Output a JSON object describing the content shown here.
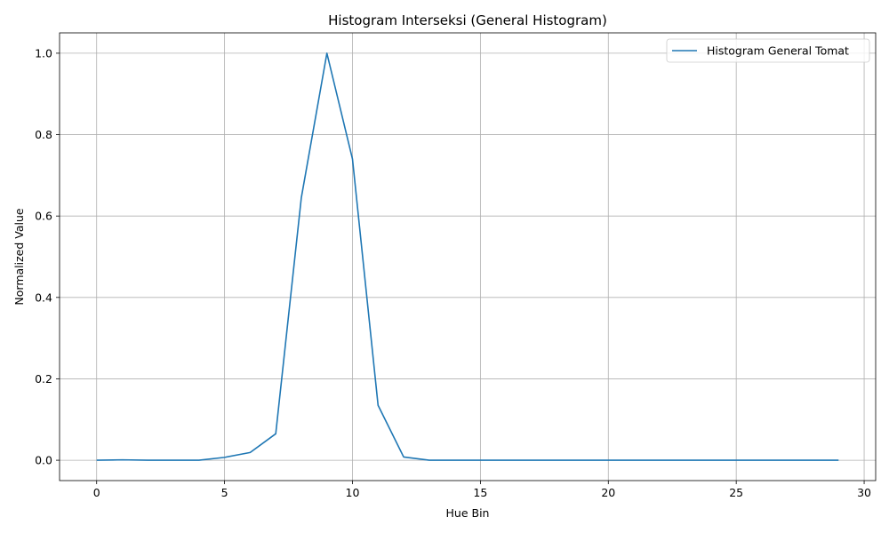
{
  "chart_data": {
    "type": "line",
    "title": "Histogram Interseksi (General Histogram)",
    "xlabel": "Hue Bin",
    "ylabel": "Normalized Value",
    "xlim": [
      -1.45,
      30.45
    ],
    "ylim": [
      -0.05,
      1.05
    ],
    "xticks": [
      0,
      5,
      10,
      15,
      20,
      25,
      30
    ],
    "yticks": [
      0.0,
      0.2,
      0.4,
      0.6,
      0.8,
      1.0
    ],
    "xtick_labels": [
      "0",
      "5",
      "10",
      "15",
      "20",
      "25",
      "30"
    ],
    "ytick_labels": [
      "0.0",
      "0.2",
      "0.4",
      "0.6",
      "0.8",
      "1.0"
    ],
    "grid": true,
    "legend_position": "top-right",
    "series": [
      {
        "name": "Histogram General Tomat",
        "color": "#1f77b4",
        "x": [
          0,
          1,
          2,
          3,
          4,
          5,
          6,
          7,
          8,
          9,
          10,
          11,
          12,
          13,
          14,
          15,
          16,
          17,
          18,
          19,
          20,
          21,
          22,
          23,
          24,
          25,
          26,
          27,
          28,
          29
        ],
        "y": [
          0.0,
          0.001,
          0.0,
          0.0,
          0.0,
          0.007,
          0.019,
          0.065,
          0.645,
          1.0,
          0.74,
          0.135,
          0.008,
          0.0,
          0.0,
          0.0,
          0.0,
          0.0,
          0.0,
          0.0,
          0.0,
          0.0,
          0.0,
          0.0,
          0.0,
          0.0,
          0.0,
          0.0,
          0.0,
          0.0
        ]
      }
    ]
  }
}
